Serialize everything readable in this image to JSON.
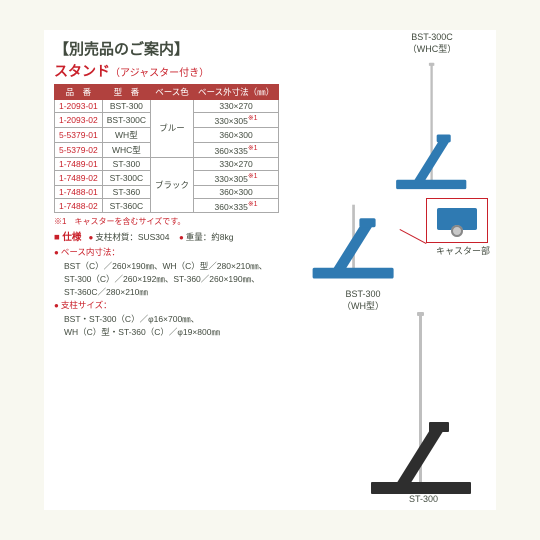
{
  "section_header": "【別売品のご案内】",
  "product_title": "スタンド",
  "product_subtitle": "（アジャスター付き）",
  "table": {
    "headers": [
      "品　番",
      "型　番",
      "ベース色",
      "ベース外寸法（㎜）"
    ],
    "rows": [
      {
        "pn": "1-2093-01",
        "model": "BST-300",
        "color": "ブルー",
        "dim": "330×270",
        "sup": ""
      },
      {
        "pn": "1-2093-02",
        "model": "BST-300C",
        "color": "",
        "dim": "330×305",
        "sup": "※1"
      },
      {
        "pn": "5-5379-01",
        "model": "WH型",
        "color": "",
        "dim": "360×300",
        "sup": ""
      },
      {
        "pn": "5-5379-02",
        "model": "WHC型",
        "color": "",
        "dim": "360×335",
        "sup": "※1"
      },
      {
        "pn": "1-7489-01",
        "model": "ST-300",
        "color": "ブラック",
        "dim": "330×270",
        "sup": ""
      },
      {
        "pn": "1-7489-02",
        "model": "ST-300C",
        "color": "",
        "dim": "330×305",
        "sup": "※1"
      },
      {
        "pn": "1-7488-01",
        "model": "ST-360",
        "color": "",
        "dim": "360×300",
        "sup": ""
      },
      {
        "pn": "1-7488-02",
        "model": "ST-360C",
        "color": "",
        "dim": "360×335",
        "sup": "※1"
      }
    ]
  },
  "footnote": "※1　キャスターを含むサイズです。",
  "spec": {
    "heading": "■ 仕様",
    "material_label": "支柱材質：SUS304",
    "weight_label": "重量：約8kg",
    "base_inner_label": "ベース内寸法：",
    "base_inner_lines": [
      "BST（C）／260×190㎜、WH（C）型／280×210㎜、",
      "ST-300（C）／260×192㎜、ST-360／260×190㎜、",
      "ST-360C／280×210㎜"
    ],
    "pole_label": "支柱サイズ：",
    "pole_lines": [
      "BST・ST-300（C）／φ16×700㎜、",
      "WH（C）型・ST-360（C）／φ19×800㎜"
    ]
  },
  "labels": {
    "fig1": "BST-300C\n（WHC型）",
    "fig2": "BST-300\n（WH型）",
    "fig3": "ST-300",
    "caster": "キャスター部"
  }
}
